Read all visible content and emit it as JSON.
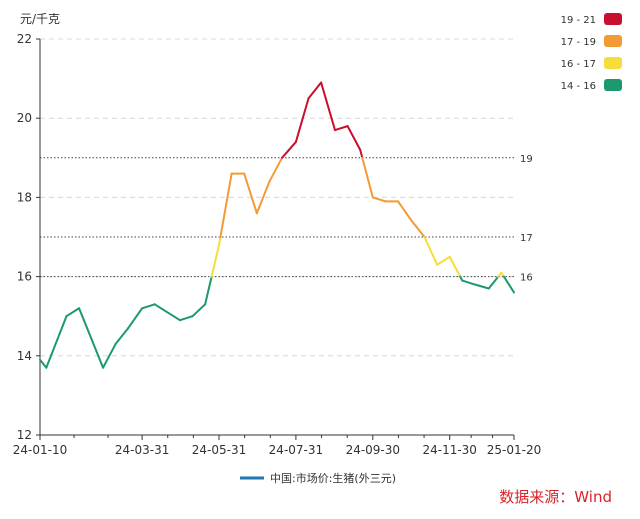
{
  "chart_data": {
    "type": "line",
    "y_unit": "元/千克",
    "ylim": [
      12,
      22
    ],
    "yticks": [
      12,
      14,
      16,
      18,
      20,
      22
    ],
    "x_start": "2024-01-10",
    "x_end": "2025-01-20",
    "xticks": [
      {
        "date": "2024-01-10",
        "label": "24-01-10"
      },
      {
        "date": "2024-03-31",
        "label": "24-03-31"
      },
      {
        "date": "2024-05-31",
        "label": "24-05-31"
      },
      {
        "date": "2024-07-31",
        "label": "24-07-31"
      },
      {
        "date": "2024-09-30",
        "label": "24-09-30"
      },
      {
        "date": "2024-11-30",
        "label": "24-11-30"
      },
      {
        "date": "2025-01-20",
        "label": "25-01-20"
      }
    ],
    "grid": true,
    "reference_lines": [
      {
        "value": 19,
        "label": "19"
      },
      {
        "value": 17,
        "label": "17"
      },
      {
        "value": 16,
        "label": "16"
      }
    ],
    "color_bands": [
      {
        "label": "19 - 21",
        "min": 19,
        "max": 21,
        "color": "#c8102e"
      },
      {
        "label": "17 - 19",
        "min": 17,
        "max": 19,
        "color": "#f39a34"
      },
      {
        "label": "16 - 17",
        "min": 16,
        "max": 17,
        "color": "#f6dd3c"
      },
      {
        "label": "14 - 16",
        "min": 14,
        "max": 16,
        "color": "#1a9a6c"
      }
    ],
    "legend_position": "top-right",
    "series": [
      {
        "name": "中国:市场价:生猪(外三元)",
        "legend_color": "#1f77b4",
        "points": [
          {
            "x": "2024-01-10",
            "y": 13.9
          },
          {
            "x": "2024-01-15",
            "y": 13.7
          },
          {
            "x": "2024-01-31",
            "y": 15.0
          },
          {
            "x": "2024-02-10",
            "y": 15.2
          },
          {
            "x": "2024-02-29",
            "y": 13.7
          },
          {
            "x": "2024-03-10",
            "y": 14.3
          },
          {
            "x": "2024-03-20",
            "y": 14.7
          },
          {
            "x": "2024-03-31",
            "y": 15.2
          },
          {
            "x": "2024-04-10",
            "y": 15.3
          },
          {
            "x": "2024-04-30",
            "y": 14.9
          },
          {
            "x": "2024-05-10",
            "y": 15.0
          },
          {
            "x": "2024-05-20",
            "y": 15.3
          },
          {
            "x": "2024-05-31",
            "y": 16.8
          },
          {
            "x": "2024-06-10",
            "y": 18.6
          },
          {
            "x": "2024-06-20",
            "y": 18.6
          },
          {
            "x": "2024-06-30",
            "y": 17.6
          },
          {
            "x": "2024-07-10",
            "y": 18.4
          },
          {
            "x": "2024-07-20",
            "y": 19.0
          },
          {
            "x": "2024-07-31",
            "y": 19.4
          },
          {
            "x": "2024-08-10",
            "y": 20.5
          },
          {
            "x": "2024-08-20",
            "y": 20.9
          },
          {
            "x": "2024-08-31",
            "y": 19.7
          },
          {
            "x": "2024-09-10",
            "y": 19.8
          },
          {
            "x": "2024-09-20",
            "y": 19.2
          },
          {
            "x": "2024-09-30",
            "y": 18.0
          },
          {
            "x": "2024-10-10",
            "y": 17.9
          },
          {
            "x": "2024-10-20",
            "y": 17.9
          },
          {
            "x": "2024-10-31",
            "y": 17.4
          },
          {
            "x": "2024-11-10",
            "y": 17.0
          },
          {
            "x": "2024-11-20",
            "y": 16.3
          },
          {
            "x": "2024-11-30",
            "y": 16.5
          },
          {
            "x": "2024-12-10",
            "y": 15.9
          },
          {
            "x": "2024-12-20",
            "y": 15.8
          },
          {
            "x": "2024-12-31",
            "y": 15.7
          },
          {
            "x": "2025-01-10",
            "y": 16.1
          },
          {
            "x": "2025-01-20",
            "y": 15.6
          }
        ]
      }
    ]
  },
  "source_text": "数据来源：Wind"
}
